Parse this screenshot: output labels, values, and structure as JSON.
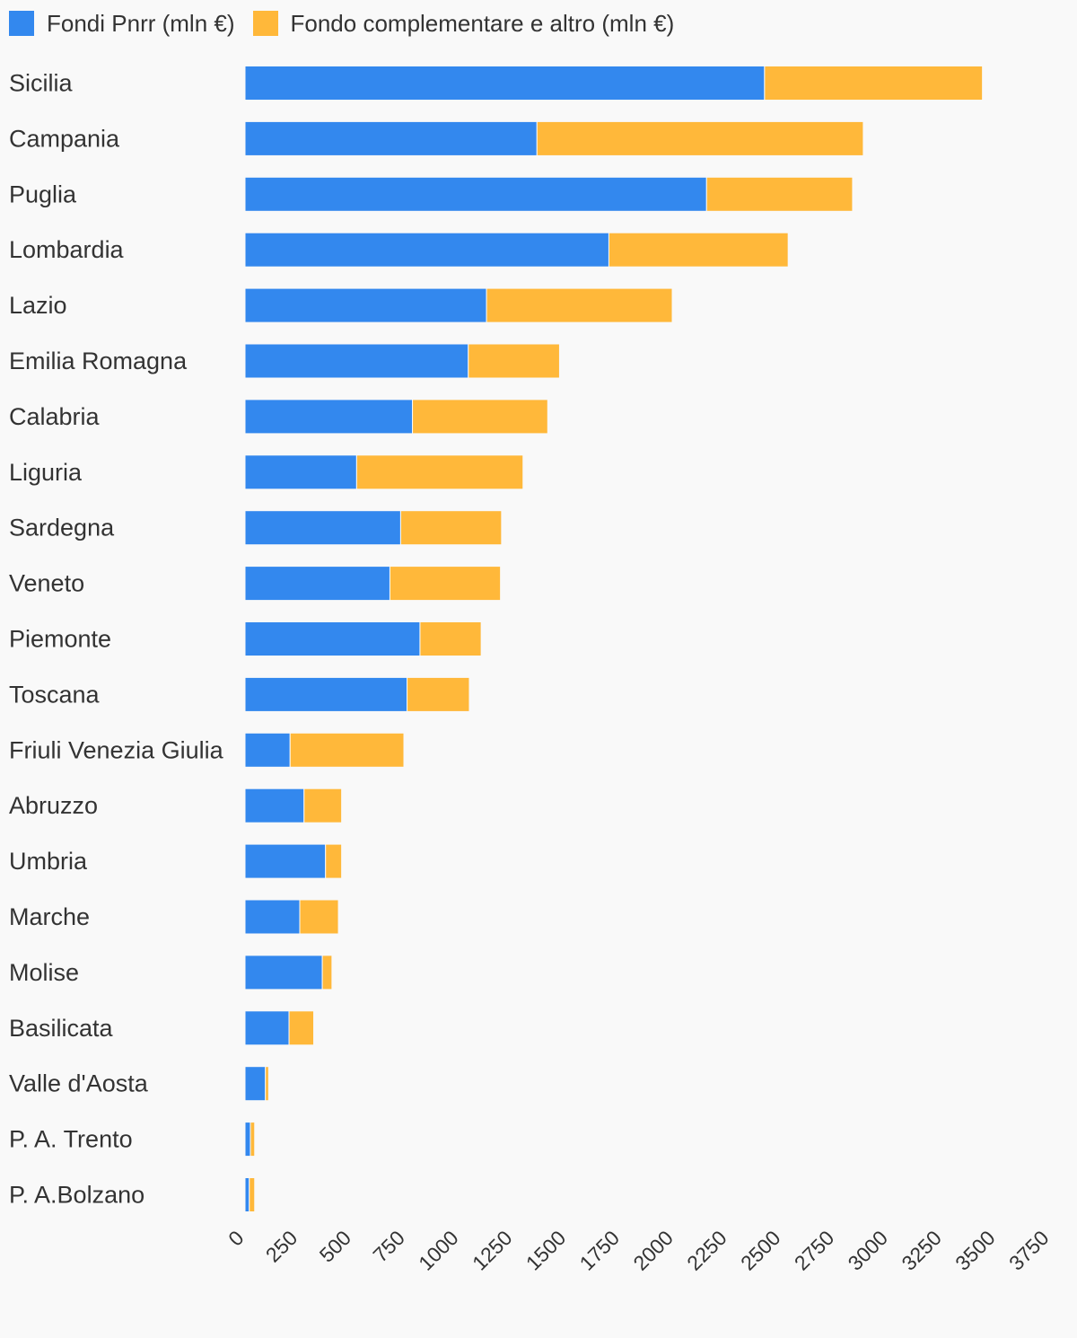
{
  "chart_data": {
    "type": "bar",
    "orientation": "horizontal",
    "stacked": true,
    "legend_position": "top-left",
    "grid": false,
    "categories": [
      "Sicilia",
      "Campania",
      "Puglia",
      "Lombardia",
      "Lazio",
      "Emilia Romagna",
      "Calabria",
      "Liguria",
      "Sardegna",
      "Veneto",
      "Piemonte",
      "Toscana",
      "Friuli Venezia Giulia",
      "Abruzzo",
      "Umbria",
      "Marche",
      "Molise",
      "Basilicata",
      "Valle d'Aosta",
      "P. A. Trento",
      "P. A.Bolzano"
    ],
    "series": [
      {
        "name": "Fondi Pnrr (mln €)",
        "color": "#3388ee",
        "values": [
          2420,
          1360,
          2150,
          1695,
          1125,
          1040,
          780,
          520,
          725,
          675,
          815,
          755,
          210,
          275,
          375,
          255,
          360,
          205,
          95,
          25,
          20
        ]
      },
      {
        "name": "Fondo complementare e altro (mln €)",
        "color": "#ffb83a",
        "values": [
          1015,
          1520,
          680,
          835,
          865,
          425,
          630,
          775,
          470,
          515,
          285,
          290,
          530,
          175,
          75,
          180,
          45,
          115,
          15,
          20,
          25
        ]
      }
    ],
    "xlim": [
      0,
      3750
    ],
    "xticks": [
      "0",
      "250",
      "500",
      "750",
      "1000",
      "1250",
      "1500",
      "1750",
      "2000",
      "2250",
      "2500",
      "2750",
      "3000",
      "3250",
      "3500",
      "3750"
    ]
  }
}
